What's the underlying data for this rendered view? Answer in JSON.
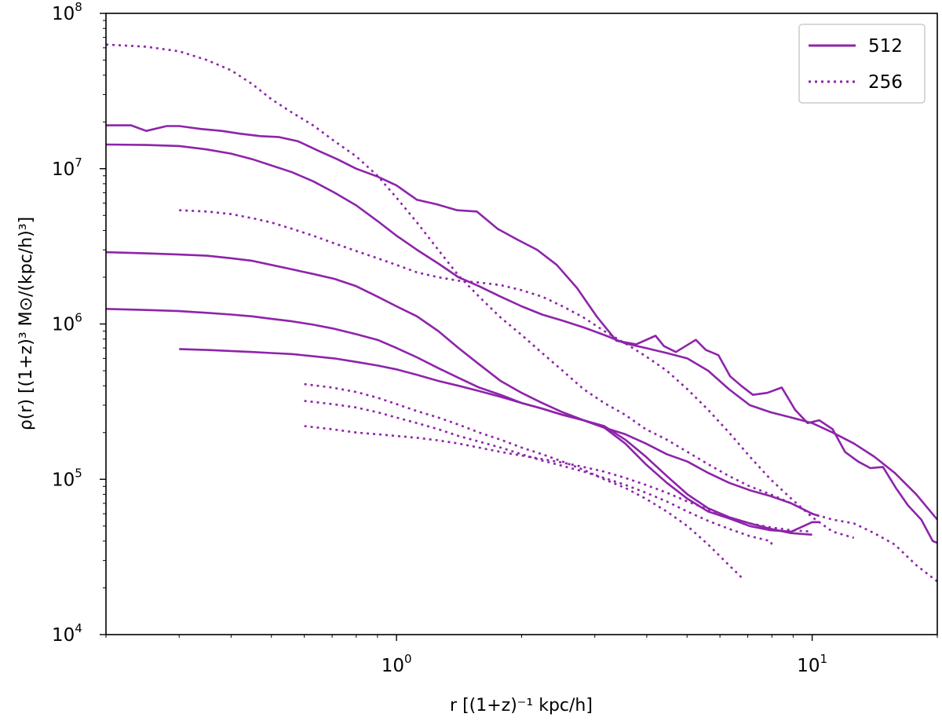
{
  "chart_data": {
    "type": "line",
    "title": "",
    "xlabel": "r [(1+z)⁻¹ kpc/h]",
    "ylabel": "ρ(r) [(1+z)³ M⊙/(kpc/h)³]",
    "xscale": "log",
    "yscale": "log",
    "xlim": [
      0.2,
      20
    ],
    "ylim": [
      10000,
      100000000
    ],
    "color": "#8e24aa",
    "legend_position": "top-right",
    "legend": [
      {
        "label": "512",
        "style": "solid"
      },
      {
        "label": "256",
        "style": "dotted"
      }
    ],
    "x_ticks": [
      {
        "value": 1,
        "base": "10",
        "exp": "0"
      },
      {
        "value": 10,
        "base": "10",
        "exp": "1"
      }
    ],
    "y_ticks": [
      {
        "value": 10000,
        "base": "10",
        "exp": "4"
      },
      {
        "value": 100000,
        "base": "10",
        "exp": "5"
      },
      {
        "value": 1000000,
        "base": "10",
        "exp": "6"
      },
      {
        "value": 10000000,
        "base": "10",
        "exp": "7"
      },
      {
        "value": 100000000,
        "base": "10",
        "exp": "8"
      }
    ],
    "series": [
      {
        "name": "512",
        "style": "solid",
        "x": [
          0.2,
          0.23,
          0.25,
          0.28,
          0.3,
          0.34,
          0.38,
          0.42,
          0.47,
          0.52,
          0.58,
          0.65,
          0.72,
          0.8,
          0.9,
          1.0,
          1.12,
          1.25,
          1.4,
          1.56,
          1.75,
          1.95,
          2.18,
          2.43,
          2.72,
          3.03,
          3.38,
          3.77,
          4.2,
          4.4,
          4.7,
          5.25,
          5.55,
          5.95,
          6.35,
          6.75,
          7.2,
          7.8,
          8.45,
          9.1,
          9.75,
          10.4,
          11.2,
          12.0,
          12.9,
          13.8,
          14.8,
          15.9,
          17.0,
          18.3,
          19.5,
          20.0
        ],
        "y": [
          19000000.0,
          19000000.0,
          17500000.0,
          18800000.0,
          18800000.0,
          18000000.0,
          17500000.0,
          16800000.0,
          16200000.0,
          16000000.0,
          15000000.0,
          13000000.0,
          11500000.0,
          10000000.0,
          8900000.0,
          7800000.0,
          6300000.0,
          5900000.0,
          5400000.0,
          5300000.0,
          4100000.0,
          3500000.0,
          3000000.0,
          2400000.0,
          1700000.0,
          1120000.0,
          780000.0,
          740000.0,
          840000.0,
          720000.0,
          660000.0,
          790000.0,
          680000.0,
          630000.0,
          460000.0,
          400000.0,
          350000.0,
          360000.0,
          390000.0,
          280000.0,
          230000.0,
          240000.0,
          210000.0,
          150000.0,
          130000.0,
          118000.0,
          120000.0,
          88000.0,
          68000.0,
          55000.0,
          40000.0,
          39000.0
        ]
      },
      {
        "name": "512",
        "style": "solid",
        "x": [
          0.2,
          0.25,
          0.3,
          0.35,
          0.4,
          0.45,
          0.5,
          0.56,
          0.63,
          0.71,
          0.8,
          0.9,
          1.0,
          1.12,
          1.26,
          1.41,
          1.58,
          1.78,
          2.0,
          2.24,
          2.51,
          2.82,
          3.16,
          3.55,
          3.98,
          4.47,
          5.01,
          5.62,
          6.31,
          7.08,
          7.94,
          8.91,
          10.0,
          11.2,
          12.6,
          14.1,
          15.8,
          17.8,
          20.0
        ],
        "y": [
          14300000.0,
          14200000.0,
          14000000.0,
          13300000.0,
          12500000.0,
          11500000.0,
          10500000.0,
          9500000.0,
          8300000.0,
          7000000.0,
          5800000.0,
          4600000.0,
          3700000.0,
          3000000.0,
          2450000.0,
          2000000.0,
          1750000.0,
          1500000.0,
          1300000.0,
          1150000.0,
          1050000.0,
          950000.0,
          850000.0,
          750000.0,
          700000.0,
          650000.0,
          600000.0,
          500000.0,
          380000.0,
          300000.0,
          270000.0,
          250000.0,
          230000.0,
          200000.0,
          170000.0,
          140000.0,
          110000.0,
          80000.0,
          55000.0
        ]
      },
      {
        "name": "512",
        "style": "solid",
        "x": [
          0.2,
          0.25,
          0.3,
          0.35,
          0.4,
          0.45,
          0.5,
          0.56,
          0.63,
          0.71,
          0.8,
          0.9,
          1.0,
          1.12,
          1.26,
          1.41,
          1.58,
          1.78,
          2.0,
          2.24,
          2.51,
          2.82,
          3.16,
          3.55,
          3.98,
          4.47,
          5.01,
          5.62,
          6.31,
          7.08,
          7.94,
          8.91,
          10.0,
          10.4
        ],
        "y": [
          2900000.0,
          2850000.0,
          2800000.0,
          2750000.0,
          2650000.0,
          2550000.0,
          2400000.0,
          2250000.0,
          2100000.0,
          1950000.0,
          1750000.0,
          1500000.0,
          1300000.0,
          1120000.0,
          900000.0,
          700000.0,
          550000.0,
          430000.0,
          360000.0,
          310000.0,
          270000.0,
          240000.0,
          215000.0,
          195000.0,
          170000.0,
          145000.0,
          130000.0,
          110000.0,
          95000.0,
          85000.0,
          78000.0,
          70000.0,
          60000.0,
          58000.0
        ]
      },
      {
        "name": "512",
        "style": "solid",
        "x": [
          0.2,
          0.25,
          0.3,
          0.35,
          0.4,
          0.45,
          0.5,
          0.56,
          0.63,
          0.71,
          0.8,
          0.9,
          1.0,
          1.12,
          1.26,
          1.41,
          1.58,
          1.78,
          2.0,
          2.24,
          2.51,
          2.82,
          3.16,
          3.55,
          3.98,
          4.47,
          5.01,
          5.62,
          6.31,
          7.08,
          7.94,
          8.91,
          10.0,
          10.4
        ],
        "y": [
          1250000.0,
          1230000.0,
          1210000.0,
          1180000.0,
          1150000.0,
          1120000.0,
          1080000.0,
          1040000.0,
          990000.0,
          930000.0,
          860000.0,
          790000.0,
          700000.0,
          610000.0,
          520000.0,
          450000.0,
          390000.0,
          350000.0,
          310000.0,
          285000.0,
          260000.0,
          240000.0,
          215000.0,
          170000.0,
          125000.0,
          95000.0,
          75000.0,
          62000.0,
          56000.0,
          50000.0,
          47000.0,
          46000.0,
          53000.0,
          53000.0
        ]
      },
      {
        "name": "512",
        "style": "solid",
        "x": [
          0.3,
          0.35,
          0.4,
          0.45,
          0.5,
          0.56,
          0.63,
          0.71,
          0.8,
          0.9,
          1.0,
          1.12,
          1.26,
          1.41,
          1.58,
          1.78,
          2.0,
          2.24,
          2.51,
          2.82,
          3.16,
          3.55,
          3.98,
          4.47,
          5.01,
          5.62,
          6.31,
          7.08,
          7.94,
          8.91,
          10.0
        ],
        "y": [
          690000.0,
          680000.0,
          670000.0,
          660000.0,
          650000.0,
          640000.0,
          620000.0,
          600000.0,
          570000.0,
          540000.0,
          510000.0,
          470000.0,
          430000.0,
          400000.0,
          370000.0,
          340000.0,
          310000.0,
          285000.0,
          260000.0,
          240000.0,
          220000.0,
          180000.0,
          140000.0,
          105000.0,
          80000.0,
          65000.0,
          57000.0,
          52000.0,
          48000.0,
          45000.0,
          44000.0
        ]
      },
      {
        "name": "256",
        "style": "dotted",
        "x": [
          0.2,
          0.25,
          0.3,
          0.35,
          0.4,
          0.45,
          0.5,
          0.56,
          0.63,
          0.71,
          0.8,
          0.9,
          1.0,
          1.12,
          1.26,
          1.41,
          1.58,
          1.78,
          2.0,
          2.24,
          2.51,
          2.82,
          3.16,
          3.55,
          3.98,
          4.47,
          5.01,
          5.62,
          6.31,
          7.08,
          7.94,
          8.91,
          10.0,
          11.2,
          12.6,
          14.1,
          15.8,
          17.8,
          20.0
        ],
        "y": [
          63000000.0,
          61000000.0,
          57000000.0,
          50000000.0,
          43000000.0,
          35000000.0,
          28000000.0,
          23000000.0,
          19000000.0,
          15000000.0,
          12000000.0,
          9000000.0,
          6500000.0,
          4500000.0,
          3000000.0,
          2050000.0,
          1500000.0,
          1100000.0,
          850000.0,
          650000.0,
          500000.0,
          380000.0,
          310000.0,
          260000.0,
          210000.0,
          180000.0,
          150000.0,
          125000.0,
          105000.0,
          90000.0,
          80000.0,
          70000.0,
          60000.0,
          55000.0,
          52000.0,
          45000.0,
          38000.0,
          28000.0,
          22000.0
        ]
      },
      {
        "name": "256",
        "style": "dotted",
        "x": [
          0.3,
          0.35,
          0.4,
          0.45,
          0.5,
          0.56,
          0.63,
          0.71,
          0.8,
          0.9,
          1.0,
          1.12,
          1.26,
          1.41,
          1.58,
          1.78,
          2.0,
          2.24,
          2.51,
          2.82,
          3.16,
          3.55,
          3.98,
          4.47,
          5.01,
          5.62,
          6.31,
          7.08,
          7.94,
          8.91,
          10.0,
          10.5,
          11.2,
          12.6
        ],
        "y": [
          5400000.0,
          5300000.0,
          5100000.0,
          4800000.0,
          4500000.0,
          4100000.0,
          3700000.0,
          3300000.0,
          2950000.0,
          2650000.0,
          2400000.0,
          2150000.0,
          2000000.0,
          1900000.0,
          1850000.0,
          1780000.0,
          1650000.0,
          1500000.0,
          1300000.0,
          1100000.0,
          900000.0,
          750000.0,
          620000.0,
          500000.0,
          380000.0,
          280000.0,
          200000.0,
          140000.0,
          100000.0,
          75000.0,
          57000.0,
          52000.0,
          46000.0,
          42000.0
        ]
      },
      {
        "name": "256",
        "style": "dotted",
        "x": [
          0.6,
          0.7,
          0.8,
          0.9,
          1.0,
          1.12,
          1.26,
          1.41,
          1.58,
          1.78,
          2.0,
          2.24,
          2.51,
          2.82,
          3.16,
          3.55,
          3.98,
          4.47,
          5.01,
          5.62,
          6.31,
          6.8
        ],
        "y": [
          410000.0,
          390000.0,
          365000.0,
          335000.0,
          305000.0,
          275000.0,
          250000.0,
          225000.0,
          200000.0,
          180000.0,
          160000.0,
          145000.0,
          130000.0,
          115000.0,
          100000.0,
          88000.0,
          75000.0,
          62000.0,
          50000.0,
          38000.0,
          28000.0,
          23000.0
        ]
      },
      {
        "name": "256",
        "style": "dotted",
        "x": [
          0.6,
          0.7,
          0.8,
          0.9,
          1.0,
          1.12,
          1.26,
          1.41,
          1.58,
          1.78,
          2.0,
          2.24,
          2.51,
          2.82,
          3.16,
          3.55,
          3.98,
          4.47,
          5.01,
          5.62,
          6.31,
          7.08,
          7.94,
          8.0
        ],
        "y": [
          320000.0,
          305000.0,
          290000.0,
          270000.0,
          250000.0,
          230000.0,
          210000.0,
          190000.0,
          175000.0,
          160000.0,
          145000.0,
          132000.0,
          122000.0,
          112000.0,
          102000.0,
          92000.0,
          82000.0,
          72000.0,
          62000.0,
          54000.0,
          48000.0,
          43000.0,
          40000.0,
          38000.0
        ]
      },
      {
        "name": "256",
        "style": "dotted",
        "x": [
          0.6,
          0.7,
          0.8,
          0.9,
          1.0,
          1.12,
          1.26,
          1.41,
          1.58,
          1.78,
          2.0,
          2.24,
          2.51,
          2.82,
          3.16,
          3.55,
          3.98,
          4.47,
          5.01,
          5.62,
          6.31,
          7.08,
          7.94,
          8.91,
          10.0
        ],
        "y": [
          220000.0,
          210000.0,
          200000.0,
          195000.0,
          190000.0,
          185000.0,
          178000.0,
          170000.0,
          160000.0,
          150000.0,
          142000.0,
          135000.0,
          128000.0,
          120000.0,
          112000.0,
          102000.0,
          92000.0,
          82000.0,
          72000.0,
          64000.0,
          57000.0,
          52000.0,
          49000.0,
          47000.0,
          46000.0
        ]
      }
    ]
  }
}
